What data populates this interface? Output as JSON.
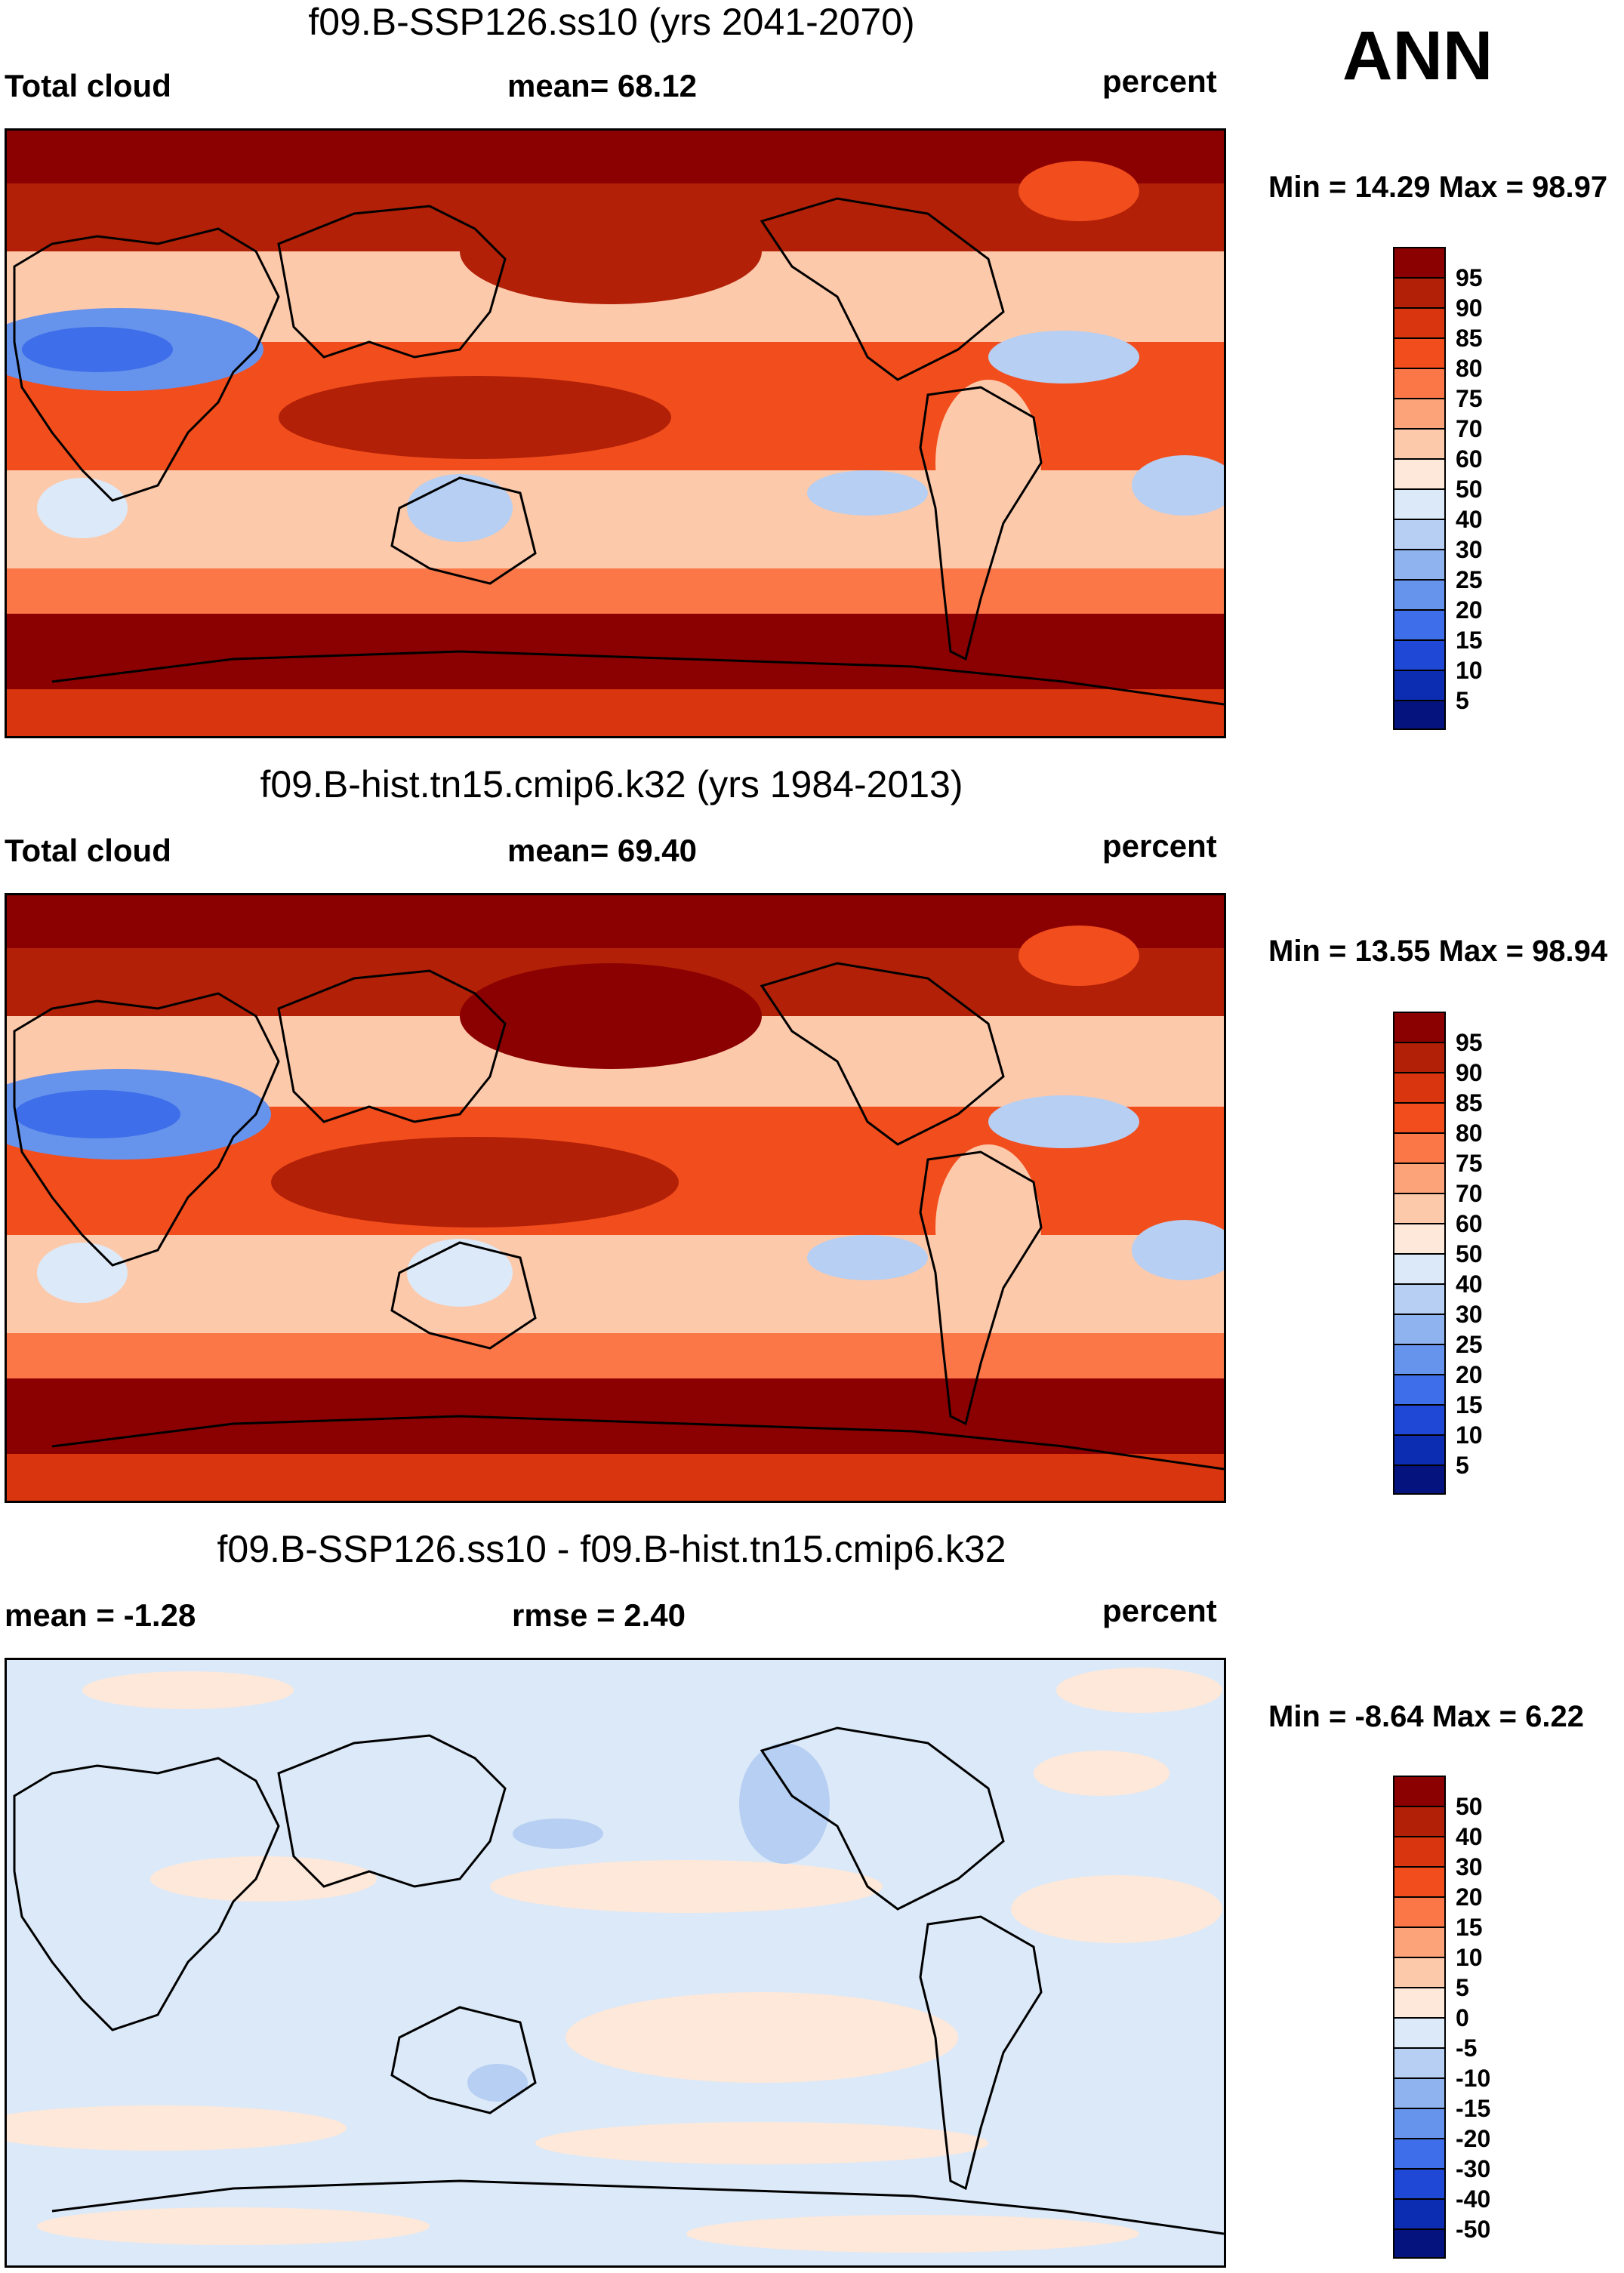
{
  "season": "ANN",
  "units": "percent",
  "panels": [
    {
      "title": "f09.B-SSP126.ss10 (yrs 2041-2070)",
      "left_label": "Total cloud",
      "center_label": "mean=  68.12",
      "minmax": "Min =  14.29 Max =  98.97"
    },
    {
      "title": "f09.B-hist.tn15.cmip6.k32 (yrs 1984-2013)",
      "left_label": "Total cloud",
      "center_label": "mean=  69.40",
      "minmax": "Min =  13.55 Max =  98.94"
    },
    {
      "title": "f09.B-SSP126.ss10 - f09.B-hist.tn15.cmip6.k32",
      "left_label": "mean =  -1.28",
      "center_label": "rmse =   2.40",
      "minmax": "Min =  -8.64 Max =   6.22"
    }
  ],
  "colorbars": {
    "absolute": {
      "levels": [
        "95",
        "90",
        "85",
        "80",
        "75",
        "70",
        "60",
        "50",
        "40",
        "30",
        "25",
        "20",
        "15",
        "10",
        "5"
      ],
      "colors": [
        "#8b0000",
        "#b22007",
        "#d9350e",
        "#f24d1c",
        "#fb7748",
        "#fca379",
        "#fdc9ab",
        "#fee8d9",
        "#dce9f8",
        "#b6cff2",
        "#8fb3ee",
        "#6693ec",
        "#3e6ee9",
        "#1f48d6",
        "#0c2cb2",
        "#05137f"
      ]
    },
    "difference": {
      "levels": [
        "50",
        "40",
        "30",
        "20",
        "15",
        "10",
        "5",
        "0",
        "-5",
        "-10",
        "-15",
        "-20",
        "-30",
        "-40",
        "-50"
      ],
      "colors": [
        "#8b0000",
        "#b22007",
        "#d9350e",
        "#f24d1c",
        "#fb7748",
        "#fca379",
        "#fdc9ab",
        "#fee8d9",
        "#dce9f8",
        "#b6cff2",
        "#8fb3ee",
        "#6693ec",
        "#3e6ee9",
        "#1f48d6",
        "#0c2cb2",
        "#05137f"
      ]
    }
  }
}
